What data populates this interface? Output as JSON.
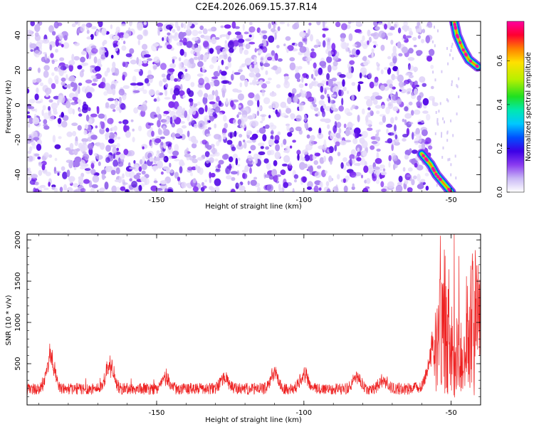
{
  "title": "C2E4.2026.069.15.37.R14",
  "chart_data": [
    {
      "type": "heatmap",
      "title": "C2E4.2026.069.15.37.R14",
      "xlabel": "Height of straight line (km)",
      "ylabel": "Frequency (Hz)",
      "xlim": [
        -194,
        -40
      ],
      "ylim": [
        -50,
        48
      ],
      "x_ticks": [
        -150,
        -100,
        -50
      ],
      "x_tick_labels": [
        "-150",
        "-100",
        "-50"
      ],
      "y_ticks": [
        -40,
        -20,
        0,
        20,
        40
      ],
      "y_tick_labels": [
        "-40",
        "-20",
        "0",
        "20",
        "40"
      ],
      "colorbar": {
        "label": "Normalized spectral amplitude",
        "range": [
          0,
          0.78
        ],
        "ticks": [
          0.0,
          0.2,
          0.4,
          0.6
        ],
        "tick_labels": [
          "0.0",
          "0.2",
          "0.4",
          "0.6"
        ],
        "colors": [
          "#ffffff",
          "#c9b8f5",
          "#8a3cf0",
          "#3c00e6",
          "#0050ff",
          "#00c8ff",
          "#00e8b0",
          "#20e020",
          "#b8f000",
          "#ffe000",
          "#ff8000",
          "#ff0030",
          "#ff00a0"
        ]
      },
      "noise_region": {
        "x_range": [
          -194,
          -57
        ],
        "amplitude_range": [
          0.0,
          0.2
        ]
      },
      "features": [
        {
          "name": "upper-chirp",
          "points": [
            [
              -49,
              48
            ],
            [
              -48,
              40
            ],
            [
              -46,
              32
            ],
            [
              -44,
              26
            ],
            [
              -41,
              22
            ]
          ],
          "amplitude": 0.75
        },
        {
          "name": "lower-chirp",
          "points": [
            [
              -60,
              -28
            ],
            [
              -57,
              -34
            ],
            [
              -55,
              -40
            ],
            [
              -53,
              -44
            ],
            [
              -50,
              -50
            ]
          ],
          "amplitude": 0.75
        }
      ]
    },
    {
      "type": "line",
      "xlabel": "Height of straight line (km)",
      "ylabel": "SNR (10 * v/v)",
      "xlim": [
        -194,
        -40
      ],
      "ylim": [
        0,
        2070
      ],
      "x_ticks": [
        -150,
        -100,
        -50
      ],
      "x_tick_labels": [
        "-150",
        "-100",
        "-50"
      ],
      "y_ticks": [
        500,
        1000,
        1500,
        2000
      ],
      "y_tick_labels": [
        "500",
        "1000",
        "1500",
        "2000"
      ],
      "series": [
        {
          "name": "SNR",
          "color": "#ee2020",
          "baseline": 190,
          "noise": 110,
          "peaks": [
            {
              "x": -186,
              "value": 700
            },
            {
              "x": -166,
              "value": 570
            },
            {
              "x": -147,
              "value": 350
            },
            {
              "x": -127,
              "value": 370
            },
            {
              "x": -110,
              "value": 430
            },
            {
              "x": -100,
              "value": 440
            },
            {
              "x": -82,
              "value": 370
            },
            {
              "x": -73,
              "value": 330
            },
            {
              "x": -53,
              "value": 1720
            },
            {
              "x": -50,
              "value": 1620
            },
            {
              "x": -47,
              "value": 980
            },
            {
              "x": -42,
              "value": 2060
            }
          ]
        }
      ]
    }
  ]
}
